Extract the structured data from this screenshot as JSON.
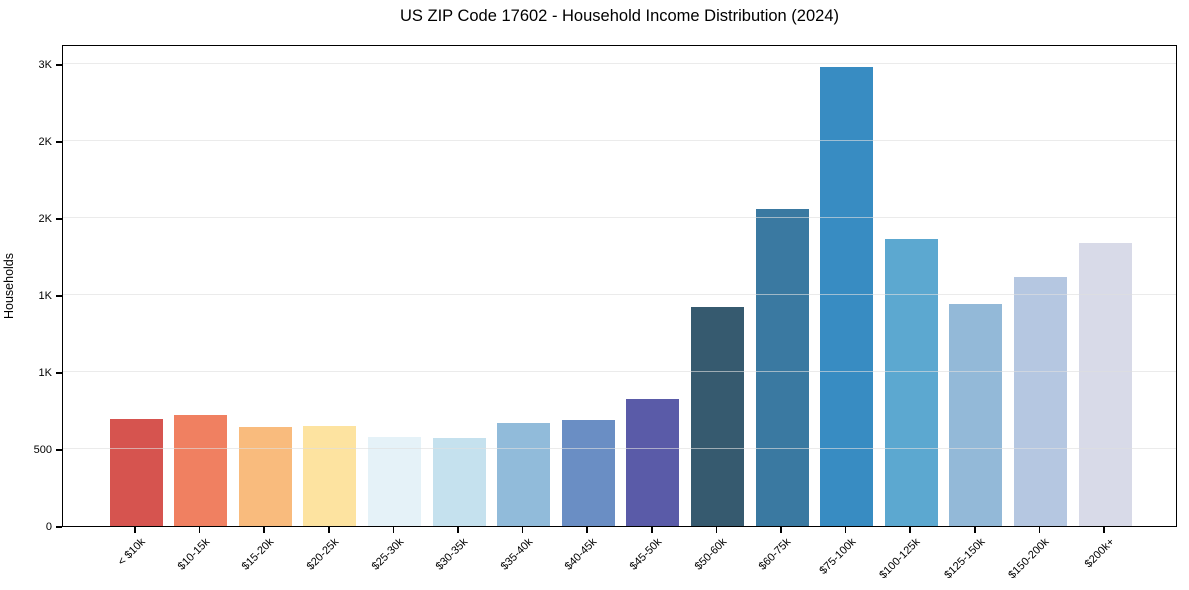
{
  "chart_data": {
    "type": "bar",
    "title": "US ZIP Code 17602 - Household Income Distribution (2024)",
    "xlabel": "",
    "ylabel": "Households",
    "categories": [
      "< $10k",
      "$10-15k",
      "$15-20k",
      "$20-25k",
      "$25-30k",
      "$30-35k",
      "$35-40k",
      "$40-45k",
      "$45-50k",
      "$50-60k",
      "$60-75k",
      "$75-100k",
      "$100-125k",
      "$125-150k",
      "$150-200k",
      "$200k+"
    ],
    "values": [
      698,
      722,
      643,
      650,
      578,
      571,
      668,
      688,
      825,
      1422,
      2059,
      2983,
      1864,
      1442,
      1616,
      1837
    ],
    "bar_colors": [
      "#d6544f",
      "#f08061",
      "#f9bb7d",
      "#fde3a0",
      "#e5f2f8",
      "#c5e1ee",
      "#91bbda",
      "#6a8ec4",
      "#5a5ba8",
      "#365a6f",
      "#3a79a1",
      "#388cc2",
      "#5ca8d0",
      "#93b9d8",
      "#b5c7e1",
      "#d8dae8"
    ],
    "ylim": [
      0,
      3130
    ],
    "yticks": {
      "values": [
        0,
        500,
        1000,
        1500,
        2000,
        2500,
        3000
      ],
      "labels": [
        "0",
        "500",
        "1K",
        "1K",
        "2K",
        "2K",
        "3K"
      ]
    },
    "grid": {
      "axis": "y",
      "drawn_over_bars": true
    },
    "legend": null,
    "xtick_rotation_deg": 45
  },
  "colors": {
    "background": "#ffffff",
    "spine": "#000000",
    "gridline_over_white": "#ebebeb",
    "text": "#000000"
  }
}
